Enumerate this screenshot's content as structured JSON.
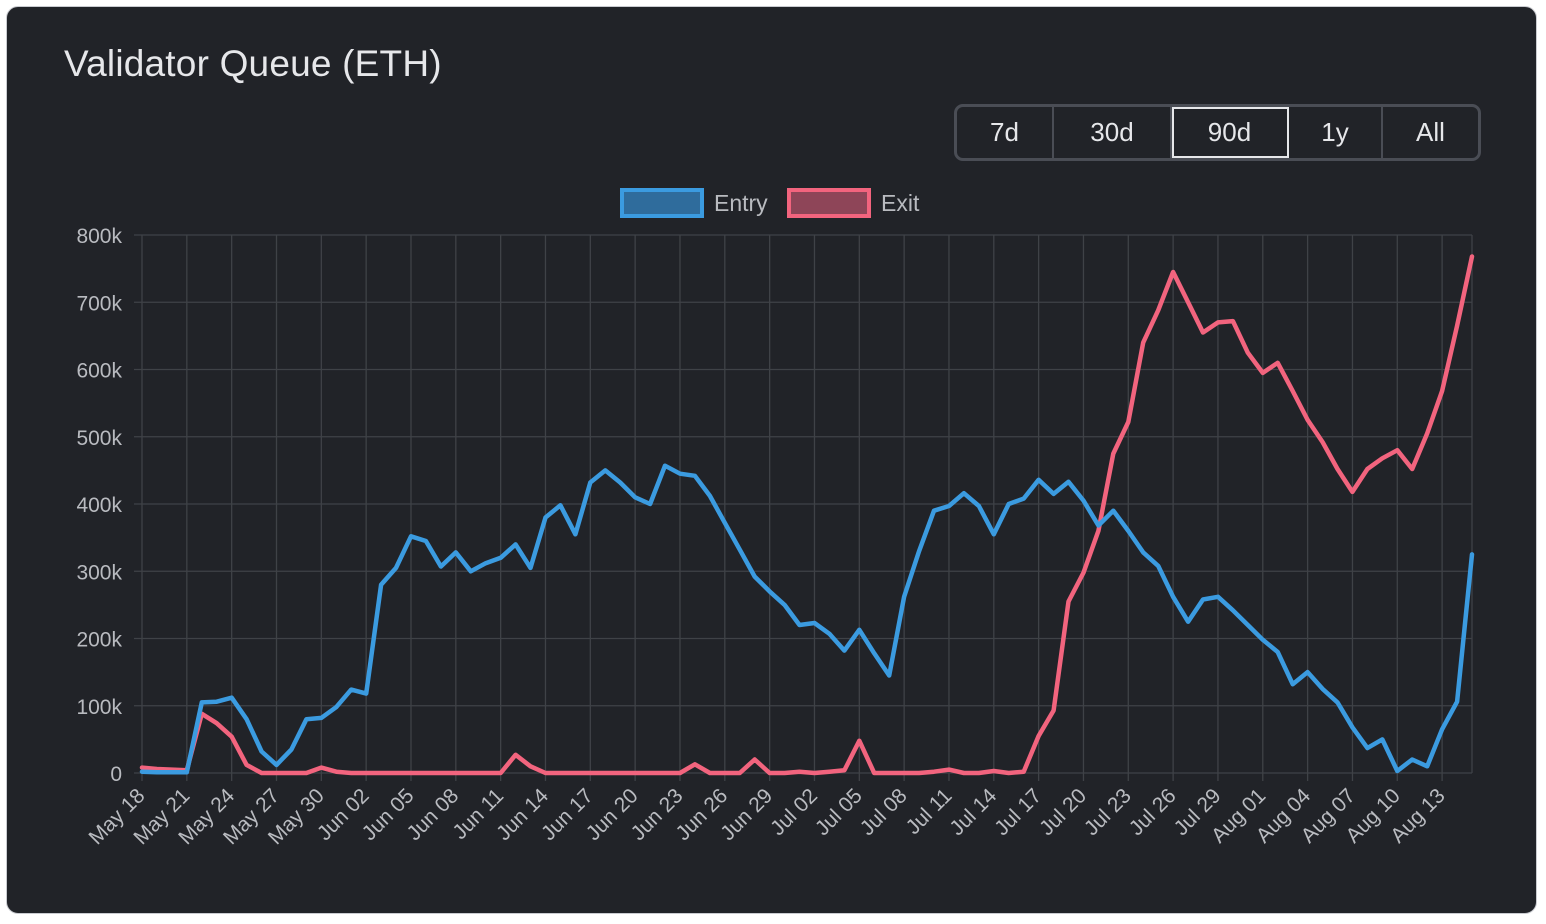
{
  "title": "Validator Queue (ETH)",
  "range_buttons": [
    {
      "label": "7d",
      "active": false
    },
    {
      "label": "30d",
      "active": false
    },
    {
      "label": "90d",
      "active": true
    },
    {
      "label": "1y",
      "active": false
    },
    {
      "label": "All",
      "active": false
    }
  ],
  "colors": {
    "entry": "#3b9be0",
    "exit": "#f2647e",
    "grid": "#3f4247",
    "text": "#b9bbc0"
  },
  "chart_data": {
    "type": "line",
    "title": "Validator Queue (ETH)",
    "xlabel": "",
    "ylabel": "",
    "ylim": [
      0,
      800000
    ],
    "yticks": [
      "0",
      "100k",
      "200k",
      "300k",
      "400k",
      "500k",
      "600k",
      "700k",
      "800k"
    ],
    "yticks_values": [
      0,
      100000,
      200000,
      300000,
      400000,
      500000,
      600000,
      700000,
      800000
    ],
    "legend": "top-center",
    "categories": [
      "May 18",
      "May 19",
      "May 20",
      "May 21",
      "May 22",
      "May 23",
      "May 24",
      "May 25",
      "May 26",
      "May 27",
      "May 28",
      "May 29",
      "May 30",
      "May 31",
      "Jun 01",
      "Jun 02",
      "Jun 03",
      "Jun 04",
      "Jun 05",
      "Jun 06",
      "Jun 07",
      "Jun 08",
      "Jun 09",
      "Jun 10",
      "Jun 11",
      "Jun 12",
      "Jun 13",
      "Jun 14",
      "Jun 15",
      "Jun 16",
      "Jun 17",
      "Jun 18",
      "Jun 19",
      "Jun 20",
      "Jun 21",
      "Jun 22",
      "Jun 23",
      "Jun 24",
      "Jun 25",
      "Jun 26",
      "Jun 27",
      "Jun 28",
      "Jun 29",
      "Jun 30",
      "Jul 01",
      "Jul 02",
      "Jul 03",
      "Jul 04",
      "Jul 05",
      "Jul 06",
      "Jul 07",
      "Jul 08",
      "Jul 09",
      "Jul 10",
      "Jul 11",
      "Jul 12",
      "Jul 13",
      "Jul 14",
      "Jul 15",
      "Jul 16",
      "Jul 17",
      "Jul 18",
      "Jul 19",
      "Jul 20",
      "Jul 21",
      "Jul 22",
      "Jul 23",
      "Jul 24",
      "Jul 25",
      "Jul 26",
      "Jul 27",
      "Jul 28",
      "Jul 29",
      "Jul 30",
      "Jul 31",
      "Aug 01",
      "Aug 02",
      "Aug 03",
      "Aug 04",
      "Aug 05",
      "Aug 06",
      "Aug 07",
      "Aug 08",
      "Aug 09",
      "Aug 10",
      "Aug 11",
      "Aug 12",
      "Aug 13",
      "Aug 14",
      "Aug 15"
    ],
    "tick_labels": [
      "May 18",
      "May 21",
      "May 24",
      "May 27",
      "May 30",
      "Jun 02",
      "Jun 05",
      "Jun 08",
      "Jun 11",
      "Jun 14",
      "Jun 17",
      "Jun 20",
      "Jun 23",
      "Jun 26",
      "Jun 29",
      "Jul 02",
      "Jul 05",
      "Jul 08",
      "Jul 11",
      "Jul 14",
      "Jul 17",
      "Jul 20",
      "Jul 23",
      "Jul 26",
      "Jul 29",
      "Aug 01",
      "Aug 04",
      "Aug 07",
      "Aug 10",
      "Aug 13"
    ],
    "series": [
      {
        "name": "Entry",
        "color": "#3b9be0",
        "values": [
          2000,
          1000,
          1000,
          1000,
          105000,
          106000,
          112000,
          80000,
          32000,
          12000,
          35000,
          80000,
          82000,
          98000,
          124000,
          118000,
          280000,
          305000,
          352000,
          345000,
          307000,
          328000,
          300000,
          312000,
          320000,
          340000,
          305000,
          380000,
          398000,
          355000,
          432000,
          450000,
          432000,
          410000,
          400000,
          457000,
          445000,
          442000,
          412000,
          372000,
          332000,
          292000,
          270000,
          250000,
          220000,
          223000,
          207000,
          182000,
          213000,
          178000,
          145000,
          262000,
          330000,
          390000,
          397000,
          416000,
          397000,
          355000,
          400000,
          408000,
          436000,
          415000,
          433000,
          405000,
          368000,
          390000,
          360000,
          328000,
          308000,
          262000,
          225000,
          258000,
          262000,
          242000,
          220000,
          198000,
          180000,
          132000,
          150000,
          125000,
          105000,
          68000,
          37000,
          50000,
          3000,
          20000,
          10000,
          65000,
          106000,
          325000
        ]
      },
      {
        "name": "Exit",
        "color": "#f2647e",
        "values": [
          8000,
          6000,
          5000,
          4000,
          88000,
          74000,
          54000,
          12000,
          0,
          0,
          0,
          0,
          8000,
          2000,
          0,
          0,
          0,
          0,
          0,
          0,
          0,
          0,
          0,
          0,
          0,
          27000,
          10000,
          0,
          0,
          0,
          0,
          0,
          0,
          0,
          0,
          0,
          0,
          13000,
          0,
          0,
          0,
          20000,
          0,
          0,
          2000,
          0,
          2000,
          4000,
          48000,
          0,
          0,
          0,
          0,
          2000,
          5000,
          0,
          0,
          3000,
          0,
          2000,
          55000,
          93000,
          255000,
          298000,
          360000,
          475000,
          522000,
          640000,
          688000,
          745000,
          700000,
          655000,
          670000,
          672000,
          625000,
          595000,
          610000,
          568000,
          525000,
          492000,
          452000,
          418000,
          452000,
          468000,
          480000,
          452000,
          505000,
          568000,
          665000,
          768000
        ]
      }
    ]
  }
}
